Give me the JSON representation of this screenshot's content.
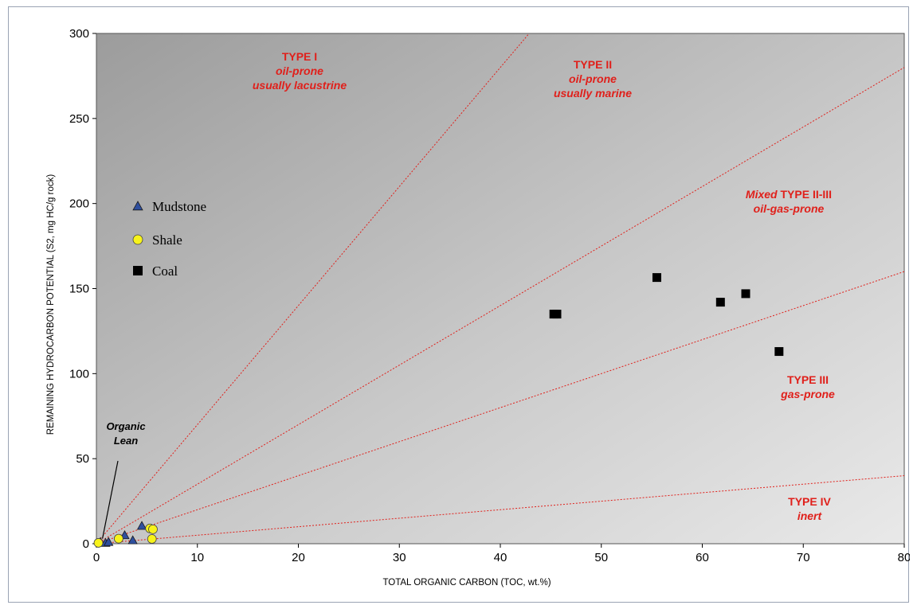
{
  "chart_data": {
    "type": "scatter",
    "xlabel": "TOTAL ORGANIC CARBON (TOC, wt.%)",
    "ylabel": "REMAINING HYDROCARBON POTENTIAL (S2, mg HC/g rock)",
    "xlim": [
      0,
      80
    ],
    "ylim": [
      0,
      300
    ],
    "xticks": [
      0,
      10,
      20,
      30,
      40,
      50,
      60,
      70,
      80
    ],
    "yticks": [
      0,
      50,
      100,
      150,
      200,
      250,
      300
    ],
    "grid": false,
    "legend_position": "left",
    "type_lines": [
      {
        "name": "TYPE I / TYPE II boundary",
        "slope": 7.0
      },
      {
        "name": "TYPE II / Mixed TYPE II-III boundary",
        "slope": 3.5
      },
      {
        "name": "Mixed TYPE II-III / TYPE III boundary",
        "slope": 2.0
      },
      {
        "name": "TYPE III / TYPE IV boundary",
        "slope": 0.5
      }
    ],
    "regions": [
      {
        "label": "TYPE I",
        "lines": [
          "oil-prone",
          "usually lacustrine"
        ]
      },
      {
        "label": "TYPE II",
        "lines": [
          "oil-prone",
          "usually marine"
        ]
      },
      {
        "prefix": "Mixed",
        "label": "TYPE II-III",
        "lines": [
          "oil-gas-prone"
        ]
      },
      {
        "label": "TYPE III",
        "lines": [
          "gas-prone"
        ]
      },
      {
        "label": "TYPE IV",
        "lines": [
          "inert"
        ]
      }
    ],
    "annotation": {
      "lines": [
        "Organic",
        "Lean"
      ],
      "x": 0.6,
      "y": 3
    },
    "series": [
      {
        "name": "Mudstone",
        "marker": "triangle",
        "color": "#2f4f9e",
        "points": [
          [
            0.4,
            1
          ],
          [
            0.9,
            0.5
          ],
          [
            1.2,
            1
          ],
          [
            2.8,
            5
          ],
          [
            3.6,
            2
          ],
          [
            4.5,
            10.5
          ]
        ]
      },
      {
        "name": "Shale",
        "marker": "circle",
        "color": "#f7f31b",
        "points": [
          [
            0.2,
            0.5
          ],
          [
            2.2,
            3
          ],
          [
            5.3,
            9
          ],
          [
            5.6,
            8.5
          ],
          [
            5.5,
            2.8
          ]
        ]
      },
      {
        "name": "Coal",
        "marker": "square",
        "color": "#000000",
        "points": [
          [
            45.3,
            135
          ],
          [
            45.6,
            135
          ],
          [
            55.5,
            156.5
          ],
          [
            61.8,
            142
          ],
          [
            64.3,
            147
          ],
          [
            67.6,
            113
          ]
        ]
      }
    ]
  }
}
